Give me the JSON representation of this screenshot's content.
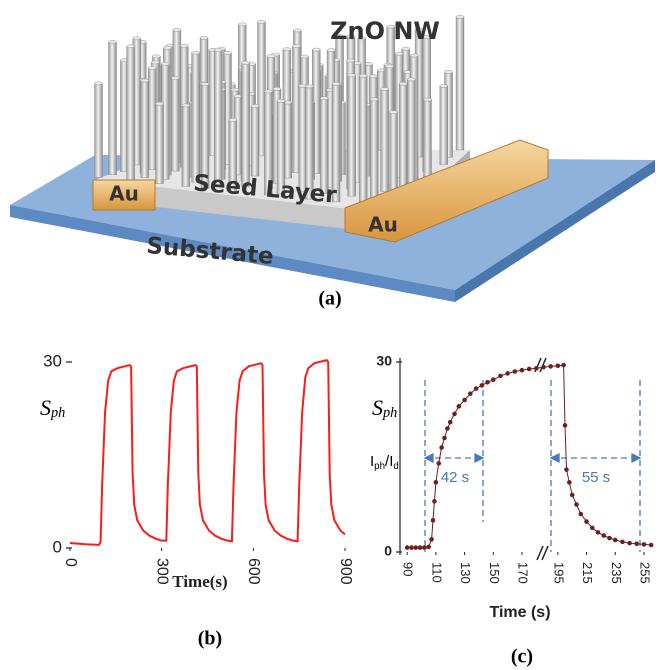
{
  "figure": {
    "panel_a": {
      "labels": {
        "zno": "ZnO NW",
        "seed": "Seed Layer",
        "au_left": "Au",
        "au_right": "Au",
        "substrate": "Substrate"
      },
      "caption": "(a)"
    }
  },
  "chart_data": [
    {
      "type": "line",
      "caption": "(b)",
      "x_label": "Time(s)",
      "y_label": [
        "S",
        "ph"
      ],
      "x": [
        0,
        50,
        95,
        100,
        105,
        115,
        125,
        135,
        155,
        195,
        200,
        205,
        210,
        220,
        240,
        260,
        280,
        300,
        315,
        320,
        330,
        340,
        350,
        370,
        410,
        415,
        420,
        425,
        435,
        455,
        475,
        495,
        515,
        530,
        535,
        545,
        555,
        565,
        585,
        625,
        630,
        635,
        640,
        650,
        670,
        690,
        710,
        730,
        745,
        750,
        760,
        770,
        780,
        800,
        840,
        845,
        850,
        855,
        865,
        885,
        900
      ],
      "series": [
        {
          "color": "#ff1a1a",
          "values": [
            0.8,
            0.6,
            0.5,
            1,
            10,
            22,
            27,
            28.5,
            29,
            29.5,
            29.3,
            12,
            7,
            4.5,
            2.8,
            2,
            1.5,
            1.2,
            1.2,
            10,
            22,
            27,
            28.5,
            29,
            29.5,
            29.3,
            12,
            7,
            4.5,
            2.8,
            2,
            1.5,
            1.2,
            1.1,
            10,
            22,
            27,
            28.5,
            29.3,
            29.8,
            29.5,
            12,
            7,
            4.5,
            2.8,
            2,
            1.5,
            1.2,
            1.1,
            10,
            22,
            27.5,
            29,
            29.8,
            30.3,
            30,
            12,
            7,
            4.5,
            2.8,
            2.2
          ]
        }
      ],
      "xlim": [
        0,
        900
      ],
      "ylim": [
        0,
        30
      ],
      "xticks": [
        0,
        300,
        600,
        900
      ],
      "yticks": [
        0,
        30
      ]
    },
    {
      "type": "scatter",
      "caption": "(c)",
      "x_label": "Time (s)",
      "y_label": [
        "S",
        "ph"
      ],
      "y_label_ratio": [
        "I",
        "ph",
        "/I",
        "d"
      ],
      "annotations": [
        "42 s",
        "55 s"
      ],
      "x": [
        90,
        93,
        96,
        99,
        102,
        105,
        107,
        108,
        109,
        110,
        112,
        114,
        116,
        118,
        120,
        123,
        126,
        130,
        134,
        138,
        142,
        146,
        150,
        155,
        160,
        165,
        170,
        175,
        180,
        185,
        190,
        195,
        199,
        200,
        201,
        203,
        205,
        208,
        211,
        215,
        219,
        223,
        227,
        231,
        235,
        240,
        245,
        250,
        255,
        260
      ],
      "series": [
        {
          "color": "#6e1f1f",
          "values": [
            0.7,
            0.7,
            0.7,
            0.7,
            0.7,
            0.8,
            2,
            5,
            8,
            11,
            14,
            16.5,
            18,
            19.5,
            20.5,
            21.8,
            23,
            24,
            25,
            25.8,
            26.3,
            26.8,
            27.2,
            27.8,
            28.2,
            28.5,
            28.7,
            28.9,
            29,
            29.2,
            29.3,
            29.4,
            29.5,
            20,
            13,
            11,
            9,
            7.5,
            6,
            4.8,
            3.8,
            3.1,
            2.6,
            2.2,
            1.9,
            1.6,
            1.4,
            1.3,
            1.2,
            1.1
          ]
        }
      ],
      "xlim": [
        85,
        262
      ],
      "ylim": [
        0,
        30
      ],
      "xticks": [
        90,
        110,
        130,
        150,
        170,
        195,
        215,
        235,
        255
      ],
      "yticks": [
        0,
        30
      ]
    }
  ]
}
